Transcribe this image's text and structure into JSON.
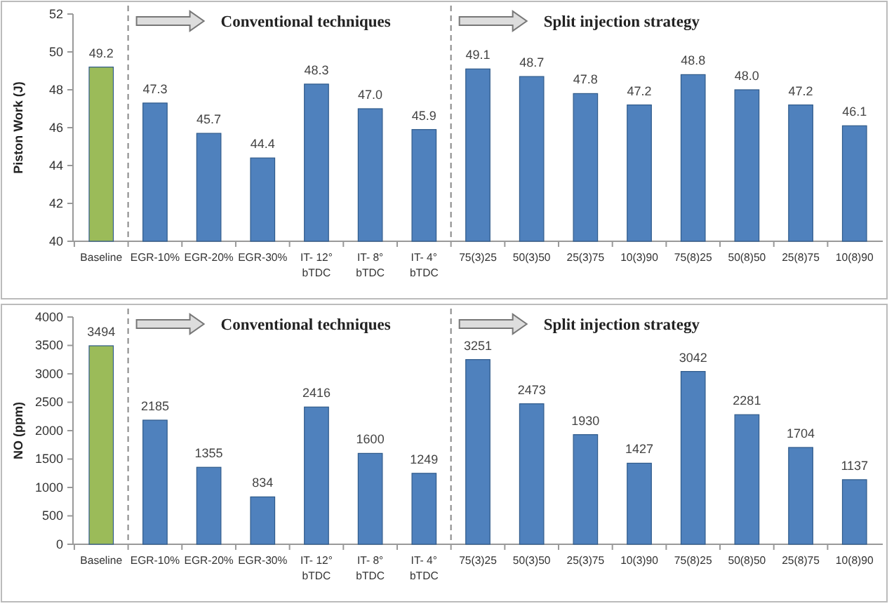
{
  "chart_data": [
    {
      "type": "bar",
      "ylabel": "Piston Work (J)",
      "categories": [
        "Baseline",
        "EGR-10%",
        "EGR-20%",
        "EGR-30%",
        "IT- 12° bTDC",
        "IT- 8° bTDC",
        "IT- 4° bTDC",
        "75(3)25",
        "50(3)50",
        "25(3)75",
        "10(3)90",
        "75(8)25",
        "50(8)50",
        "25(8)75",
        "10(8)90"
      ],
      "values": [
        49.2,
        47.3,
        45.7,
        44.4,
        48.3,
        47.0,
        45.9,
        49.1,
        48.7,
        47.8,
        47.2,
        48.8,
        48.0,
        47.2,
        46.1
      ],
      "value_labels": [
        "49.2",
        "47.3",
        "45.7",
        "44.4",
        "48.3",
        "47.0",
        "45.9",
        "49.1",
        "48.7",
        "47.8",
        "47.2",
        "48.8",
        "48.0",
        "47.2",
        "46.1"
      ],
      "colors": [
        "#9bbb59",
        "#4f81bd",
        "#4f81bd",
        "#4f81bd",
        "#4f81bd",
        "#4f81bd",
        "#4f81bd",
        "#4f81bd",
        "#4f81bd",
        "#4f81bd",
        "#4f81bd",
        "#4f81bd",
        "#4f81bd",
        "#4f81bd",
        "#4f81bd"
      ],
      "ylim": [
        40,
        52
      ],
      "yticks": [
        40,
        42,
        44,
        46,
        48,
        50,
        52
      ],
      "annotations": [
        "Conventional techniques",
        "Split injection strategy"
      ]
    },
    {
      "type": "bar",
      "ylabel": "NO (ppm)",
      "categories": [
        "Baseline",
        "EGR-10%",
        "EGR-20%",
        "EGR-30%",
        "IT- 12° bTDC",
        "IT- 8° bTDC",
        "IT- 4° bTDC",
        "75(3)25",
        "50(3)50",
        "25(3)75",
        "10(3)90",
        "75(8)25",
        "50(8)50",
        "25(8)75",
        "10(8)90"
      ],
      "values": [
        3494,
        2185,
        1355,
        834,
        2416,
        1600,
        1249,
        3251,
        2473,
        1930,
        1427,
        3042,
        2281,
        1704,
        1137
      ],
      "data_labels": true,
      "colors": [
        "#9bbb59",
        "#4f81bd",
        "#4f81bd",
        "#4f81bd",
        "#4f81bd",
        "#4f81bd",
        "#4f81bd",
        "#4f81bd",
        "#4f81bd",
        "#4f81bd",
        "#4f81bd",
        "#4f81bd",
        "#4f81bd",
        "#4f81bd",
        "#4f81bd"
      ],
      "ylim": [
        0,
        4000
      ],
      "yticks": [
        0,
        500,
        1000,
        1500,
        2000,
        2500,
        3000,
        3500,
        4000
      ],
      "annotations": [
        "Conventional techniques",
        "Split injection strategy"
      ]
    }
  ]
}
